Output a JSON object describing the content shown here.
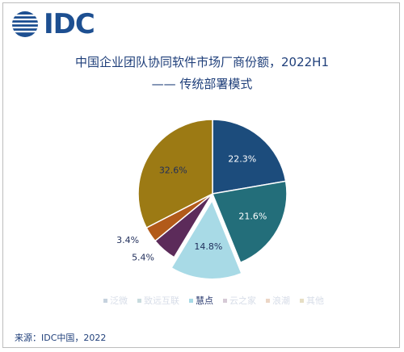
{
  "logo": {
    "text": "IDC"
  },
  "title": {
    "line1": "中国企业团队协同软件市场厂商份额，2022H1",
    "line2": "—— 传统部署模式"
  },
  "chart_data": {
    "type": "pie",
    "title": "中国企业团队协同软件市场厂商份额，2022H1 —— 传统部署模式",
    "series": [
      {
        "name": "泛微",
        "value": 22.3,
        "label": "22.3%",
        "color": "#1c4c7c",
        "label_color": "#ffffff"
      },
      {
        "name": "致远互联",
        "value": 21.6,
        "label": "21.6%",
        "color": "#236e7a",
        "label_color": "#ffffff"
      },
      {
        "name": "慧点",
        "value": 14.8,
        "label": "14.8%",
        "color": "#a8dae6",
        "label_color": "#1f2d5a",
        "exploded": true
      },
      {
        "name": "云之家",
        "value": 5.4,
        "label": "5.4%",
        "color": "#5c2b5a",
        "label_color": "#1f2d5a",
        "outside": true
      },
      {
        "name": "浪潮",
        "value": 3.4,
        "label": "3.4%",
        "color": "#b25a1a",
        "label_color": "#1f2d5a",
        "outside": true
      },
      {
        "name": "其他",
        "value": 32.6,
        "label": "32.6%",
        "color": "#9c7a14",
        "label_color": "#1f2d5a"
      }
    ],
    "legend_position": "bottom",
    "highlighted": "慧点"
  },
  "legend": {
    "items": [
      {
        "label": "泛微",
        "color": "#1c4c7c",
        "state": "faded"
      },
      {
        "label": "致远互联",
        "color": "#236e7a",
        "state": "faded"
      },
      {
        "label": "慧点",
        "color": "#a8dae6",
        "state": "active"
      },
      {
        "label": "云之家",
        "color": "#5c2b5a",
        "state": "faded"
      },
      {
        "label": "浪潮",
        "color": "#b25a1a",
        "state": "faded"
      },
      {
        "label": "其他",
        "color": "#9c7a14",
        "state": "faded"
      }
    ]
  },
  "footer": {
    "source": "来源：IDC中国，2022"
  }
}
